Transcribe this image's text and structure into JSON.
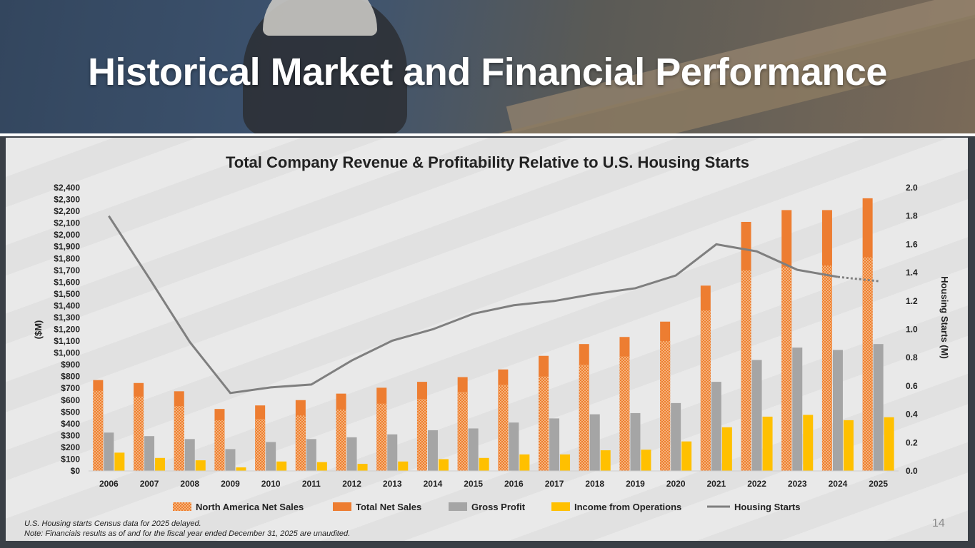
{
  "header": {
    "title": "Historical Market and Financial Performance"
  },
  "chart_data": {
    "type": "bar",
    "title": "Total Company Revenue & Profitability Relative to U.S. Housing Starts",
    "ylabel": "($M)",
    "y2label": "Housing Starts (M)",
    "ylim": [
      0,
      2400
    ],
    "y2lim": [
      0,
      2.0
    ],
    "yticks": [
      "$0",
      "$100",
      "$200",
      "$300",
      "$400",
      "$500",
      "$600",
      "$700",
      "$800",
      "$900",
      "$1,000",
      "$1,100",
      "$1,200",
      "$1,300",
      "$1,400",
      "$1,500",
      "$1,600",
      "$1,700",
      "$1,800",
      "$1,900",
      "$2,000",
      "$2,100",
      "$2,200",
      "$2,300",
      "$2,400"
    ],
    "y2ticks": [
      "0.0",
      "0.2",
      "0.4",
      "0.6",
      "0.8",
      "1.0",
      "1.2",
      "1.4",
      "1.6",
      "1.8",
      "2.0"
    ],
    "categories": [
      "2006",
      "2007",
      "2008",
      "2009",
      "2010",
      "2011",
      "2012",
      "2013",
      "2014",
      "2015",
      "2016",
      "2017",
      "2018",
      "2019",
      "2020",
      "2021",
      "2022",
      "2023",
      "2024",
      "2025"
    ],
    "series": [
      {
        "name": "North America Net Sales",
        "color": "#f4a259",
        "values": [
          680,
          630,
          550,
          430,
          440,
          470,
          520,
          570,
          610,
          670,
          730,
          800,
          900,
          970,
          1100,
          1360,
          1700,
          1730,
          1740,
          1810
        ]
      },
      {
        "name": "Total Net Sales",
        "color": "#ed7d31",
        "values": [
          770,
          745,
          675,
          525,
          555,
          600,
          655,
          705,
          755,
          795,
          860,
          975,
          1075,
          1135,
          1265,
          1570,
          2110,
          2210,
          2210,
          2310
        ]
      },
      {
        "name": "Gross Profit",
        "color": "#a5a5a5",
        "values": [
          325,
          295,
          270,
          185,
          245,
          270,
          285,
          310,
          345,
          360,
          410,
          445,
          480,
          490,
          575,
          755,
          940,
          1045,
          1025,
          1075
        ]
      },
      {
        "name": "Income from Operations",
        "color": "#ffc000",
        "values": [
          155,
          110,
          90,
          30,
          80,
          75,
          60,
          80,
          100,
          110,
          140,
          140,
          175,
          180,
          250,
          370,
          460,
          475,
          430,
          455
        ]
      },
      {
        "name": "Housing Starts",
        "color": "#7f7f7f",
        "type": "line",
        "axis": "secondary",
        "values": [
          1.8,
          1.36,
          0.91,
          0.55,
          0.59,
          0.61,
          0.78,
          0.92,
          1.0,
          1.11,
          1.17,
          1.2,
          1.25,
          1.29,
          1.38,
          1.6,
          1.55,
          1.42,
          1.37,
          1.34
        ],
        "projected_from": "2024"
      }
    ],
    "legend_position": "bottom"
  },
  "footnotes": [
    "U.S. Housing starts Census data for 2025 delayed.",
    "Note: Financials results as of and for the fiscal year ended December 31, 2025 are unaudited."
  ],
  "page_number": "14"
}
